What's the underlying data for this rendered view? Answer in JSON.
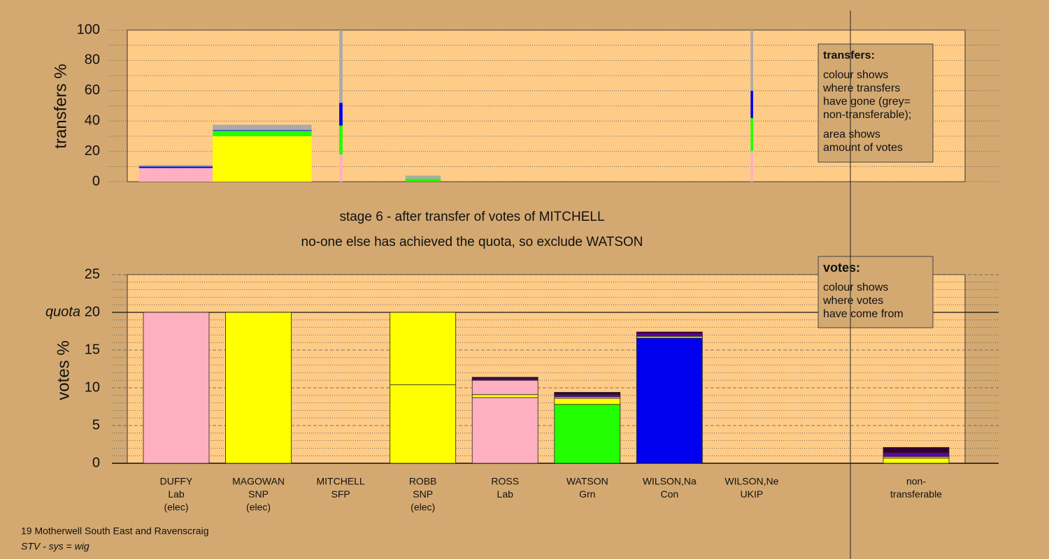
{
  "chart_data": [
    {
      "type": "bar",
      "y_label": "transfers %",
      "ylim": [
        0,
        100
      ],
      "yticks": [
        0,
        20,
        40,
        60,
        80,
        100
      ],
      "minor_yticks": [
        10,
        30,
        50,
        70,
        90
      ],
      "xlim": [
        0,
        100
      ],
      "bar_x": [
        [
          1.4,
          10.2
        ],
        [
          10.2,
          22.0
        ],
        [
          25.3,
          25.7
        ],
        [
          33.2,
          37.4
        ],
        [
          74.4,
          74.7
        ]
      ],
      "series": [
        {
          "color": "#ffb0c0",
          "values": [
            9,
            0,
            18,
            0,
            20
          ]
        },
        {
          "color": "#ffff00",
          "values": [
            0,
            30,
            0,
            0,
            0
          ]
        },
        {
          "color": "#22ff00",
          "values": [
            0,
            3.5,
            19,
            2,
            22
          ]
        },
        {
          "color": "#0000ee",
          "values": [
            1,
            0.5,
            15,
            0,
            18
          ]
        },
        {
          "color": "#aaaaaa",
          "values": [
            1,
            3.5,
            48,
            2,
            40
          ]
        }
      ],
      "note": {
        "title": "transfers:",
        "paragraphs": [
          [
            "colour shows",
            "where transfers",
            "have gone (grey=",
            "non-transferable);"
          ],
          [
            "area shows",
            "amount of votes"
          ]
        ]
      }
    },
    {
      "type": "bar",
      "y_label": "votes %",
      "ylim": [
        0,
        25
      ],
      "yticks": [
        0,
        5,
        10,
        15,
        20,
        25
      ],
      "minor_yticks": [
        1,
        2,
        3,
        4,
        6,
        7,
        8,
        9,
        11,
        12,
        13,
        14,
        16,
        17,
        18,
        19,
        21,
        22,
        23,
        24
      ],
      "quota": {
        "value": 20,
        "label": "quota"
      },
      "categories": [
        [
          "DUFFY",
          "Lab",
          "(elec)"
        ],
        [
          "MAGOWAN",
          "SNP",
          "(elec)"
        ],
        [
          "MITCHELL",
          "SFP"
        ],
        [
          "ROBB",
          "SNP",
          "(elec)"
        ],
        [
          "ROSS",
          "Lab"
        ],
        [
          "WATSON",
          "Grn"
        ],
        [
          "WILSON,Na",
          "Con"
        ],
        [
          "WILSON,Ne",
          "UKIP"
        ],
        null,
        [
          "non-",
          "transferable"
        ]
      ],
      "series": [
        {
          "colors": [
            "#ffb0c0",
            "#ffff00",
            "#ffb0c0",
            "#ffff00",
            "#ffb0c0",
            "#22ff00",
            "#0000ee",
            "#6600aa",
            null,
            "#ffff00"
          ],
          "values": [
            20,
            20,
            0,
            10.4,
            8.7,
            7.8,
            16.6,
            0,
            null,
            0
          ]
        },
        {
          "color": "#ffff00",
          "values": [
            0,
            0,
            0,
            9.6,
            0.4,
            0.8,
            0.2,
            0,
            null,
            0.7
          ]
        },
        {
          "color": "#ffb0c0",
          "values": [
            0,
            0,
            0,
            0,
            1.9,
            0.2,
            0.1,
            0,
            null,
            0.2
          ]
        },
        {
          "color": "#6600aa",
          "values": [
            0,
            0,
            0,
            0,
            0.2,
            0.3,
            0.3,
            0,
            null,
            0.5
          ]
        },
        {
          "color": "#330033",
          "values": [
            0,
            0,
            0,
            0,
            0.2,
            0.3,
            0.2,
            0,
            null,
            0.7
          ]
        }
      ],
      "note": {
        "title": "votes:",
        "paragraphs": [
          [
            "colour shows",
            "where votes",
            "have come from"
          ]
        ]
      }
    }
  ],
  "stage": {
    "line1": "stage 6 - after transfer of votes of MITCHELL",
    "line2": "no-one else has achieved the quota, so exclude WATSON"
  },
  "footer": {
    "line1": "19 Motherwell South East and Ravenscraig",
    "line2": "STV - sys = wig"
  }
}
